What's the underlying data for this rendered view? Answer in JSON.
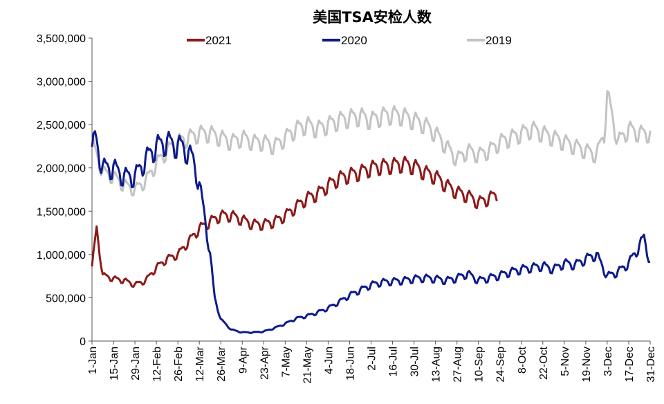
{
  "chart_data": {
    "type": "line",
    "title": "美国TSA安检人数",
    "xlabel": "",
    "ylabel": "",
    "ylim": [
      0,
      3500000
    ],
    "yticks": [
      0,
      500000,
      1000000,
      1500000,
      2000000,
      2500000,
      3000000,
      3500000
    ],
    "ytick_labels": [
      "0",
      "500,000",
      "1,000,000",
      "1,500,000",
      "2,000,000",
      "2,500,000",
      "3,000,000",
      "3,500,000"
    ],
    "xlim": [
      "1-Jan",
      "31-Dec"
    ],
    "xtick_labels": [
      "1-Jan",
      "15-Jan",
      "29-Jan",
      "12-Feb",
      "26-Feb",
      "12-Mar",
      "26-Mar",
      "9-Apr",
      "23-Apr",
      "7-May",
      "21-May",
      "4-Jun",
      "18-Jun",
      "2-Jul",
      "16-Jul",
      "30-Jul",
      "13-Aug",
      "27-Aug",
      "10-Sep",
      "24-Sep",
      "8-Oct",
      "22-Oct",
      "5-Nov",
      "19-Nov",
      "3-Dec",
      "17-Dec",
      "31-Dec"
    ],
    "grid": false,
    "legend_position": "top",
    "series": [
      {
        "name": "2021",
        "color": "#8B1A1A",
        "x": [
          "1-Jan",
          "4-Jan",
          "8-Jan",
          "15-Jan",
          "22-Jan",
          "29-Jan",
          "5-Feb",
          "12-Feb",
          "19-Feb",
          "26-Feb",
          "5-Mar",
          "12-Mar",
          "19-Mar",
          "26-Mar",
          "2-Apr",
          "9-Apr",
          "16-Apr",
          "23-Apr",
          "30-Apr",
          "7-May",
          "14-May",
          "21-May",
          "28-May",
          "4-Jun",
          "11-Jun",
          "18-Jun",
          "25-Jun",
          "2-Jul",
          "9-Jul",
          "16-Jul",
          "23-Jul",
          "30-Jul",
          "6-Aug",
          "13-Aug",
          "20-Aug",
          "27-Aug",
          "3-Sep",
          "10-Sep",
          "17-Sep",
          "22-Sep"
        ],
        "values": [
          850000,
          1300000,
          760000,
          720000,
          700000,
          650000,
          700000,
          850000,
          950000,
          1000000,
          1150000,
          1300000,
          1380000,
          1450000,
          1450000,
          1400000,
          1350000,
          1350000,
          1380000,
          1450000,
          1550000,
          1650000,
          1700000,
          1800000,
          1880000,
          1920000,
          1950000,
          2000000,
          2020000,
          2030000,
          2050000,
          2020000,
          1950000,
          1900000,
          1800000,
          1720000,
          1680000,
          1600000,
          1650000,
          1700000
        ]
      },
      {
        "name": "2020",
        "color": "#0D1A8C",
        "x": [
          "1-Jan",
          "3-Jan",
          "8-Jan",
          "15-Jan",
          "22-Jan",
          "29-Jan",
          "5-Feb",
          "12-Feb",
          "19-Feb",
          "26-Feb",
          "1-Mar",
          "8-Mar",
          "12-Mar",
          "15-Mar",
          "19-Mar",
          "22-Mar",
          "26-Mar",
          "2-Apr",
          "9-Apr",
          "16-Apr",
          "23-Apr",
          "30-Apr",
          "7-May",
          "14-May",
          "21-May",
          "28-May",
          "4-Jun",
          "11-Jun",
          "18-Jun",
          "25-Jun",
          "2-Jul",
          "9-Jul",
          "16-Jul",
          "23-Jul",
          "30-Jul",
          "6-Aug",
          "13-Aug",
          "20-Aug",
          "27-Aug",
          "3-Sep",
          "10-Sep",
          "17-Sep",
          "24-Sep",
          "1-Oct",
          "8-Oct",
          "15-Oct",
          "22-Oct",
          "29-Oct",
          "5-Nov",
          "12-Nov",
          "19-Nov",
          "26-Nov",
          "3-Dec",
          "10-Dec",
          "17-Dec",
          "24-Dec",
          "27-Dec",
          "31-Dec"
        ],
        "values": [
          2200000,
          2350000,
          2000000,
          2000000,
          1900000,
          1900000,
          2100000,
          2250000,
          2300000,
          2250000,
          2250000,
          2100000,
          1800000,
          1500000,
          1000000,
          500000,
          250000,
          130000,
          100000,
          100000,
          110000,
          150000,
          200000,
          260000,
          290000,
          330000,
          380000,
          450000,
          530000,
          590000,
          650000,
          680000,
          690000,
          700000,
          720000,
          730000,
          720000,
          700000,
          730000,
          780000,
          700000,
          730000,
          760000,
          800000,
          830000,
          850000,
          870000,
          830000,
          900000,
          880000,
          950000,
          1000000,
          750000,
          800000,
          900000,
          1100000,
          1200000,
          900000
        ]
      },
      {
        "name": "2019",
        "color": "#C3C3C3",
        "x": [
          "1-Jan",
          "8-Jan",
          "15-Jan",
          "22-Jan",
          "29-Jan",
          "5-Feb",
          "12-Feb",
          "19-Feb",
          "26-Feb",
          "5-Mar",
          "12-Mar",
          "19-Mar",
          "26-Mar",
          "2-Apr",
          "9-Apr",
          "16-Apr",
          "23-Apr",
          "30-Apr",
          "7-May",
          "14-May",
          "21-May",
          "28-May",
          "4-Jun",
          "11-Jun",
          "18-Jun",
          "25-Jun",
          "2-Jul",
          "9-Jul",
          "16-Jul",
          "23-Jul",
          "30-Jul",
          "6-Aug",
          "13-Aug",
          "20-Aug",
          "27-Aug",
          "3-Sep",
          "10-Sep",
          "17-Sep",
          "24-Sep",
          "1-Oct",
          "8-Oct",
          "15-Oct",
          "22-Oct",
          "29-Oct",
          "5-Nov",
          "12-Nov",
          "19-Nov",
          "26-Nov",
          "1-Dec",
          "3-Dec",
          "10-Dec",
          "17-Dec",
          "24-Dec",
          "31-Dec"
        ],
        "values": [
          2300000,
          1950000,
          1900000,
          1800000,
          1750000,
          1850000,
          2050000,
          2200000,
          2300000,
          2350000,
          2400000,
          2400000,
          2350000,
          2300000,
          2350000,
          2300000,
          2300000,
          2250000,
          2350000,
          2450000,
          2500000,
          2450000,
          2500000,
          2550000,
          2580000,
          2600000,
          2550000,
          2600000,
          2620000,
          2600000,
          2550000,
          2500000,
          2400000,
          2250000,
          2100000,
          2200000,
          2150000,
          2200000,
          2300000,
          2350000,
          2400000,
          2450000,
          2400000,
          2350000,
          2300000,
          2250000,
          2200000,
          2150000,
          2400000,
          2850000,
          2300000,
          2450000,
          2400000,
          2400000
        ]
      }
    ]
  }
}
